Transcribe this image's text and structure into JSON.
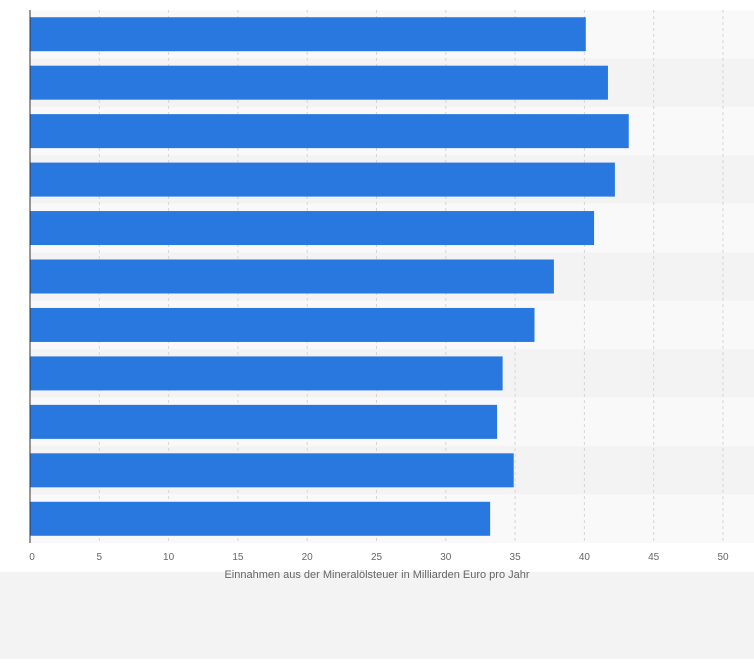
{
  "chart_data": {
    "type": "bar",
    "orientation": "horizontal",
    "categories": [
      "",
      "",
      "",
      "",
      "",
      "",
      "",
      "",
      "",
      "",
      ""
    ],
    "values": [
      40.1,
      41.7,
      43.2,
      42.2,
      40.7,
      37.8,
      36.4,
      34.1,
      33.7,
      34.9,
      33.2
    ],
    "title": "",
    "xlabel": "Einnahmen aus der Mineralölsteuer in Milliarden Euro pro Jahr",
    "ylabel": "",
    "xlim": [
      0,
      50
    ],
    "xticks": [
      "0",
      "5",
      "10",
      "15",
      "20",
      "25",
      "30",
      "35",
      "40",
      "45",
      "50"
    ],
    "grid": true,
    "legend": "none",
    "colors": {
      "bar": "#2878e0",
      "band_light": "#f9f9f9",
      "band_dark": "#f3f3f3",
      "grid": "#d6d6d6",
      "axis": "#333333",
      "tick_text": "#666666",
      "footer": "#f3f3f3"
    }
  }
}
